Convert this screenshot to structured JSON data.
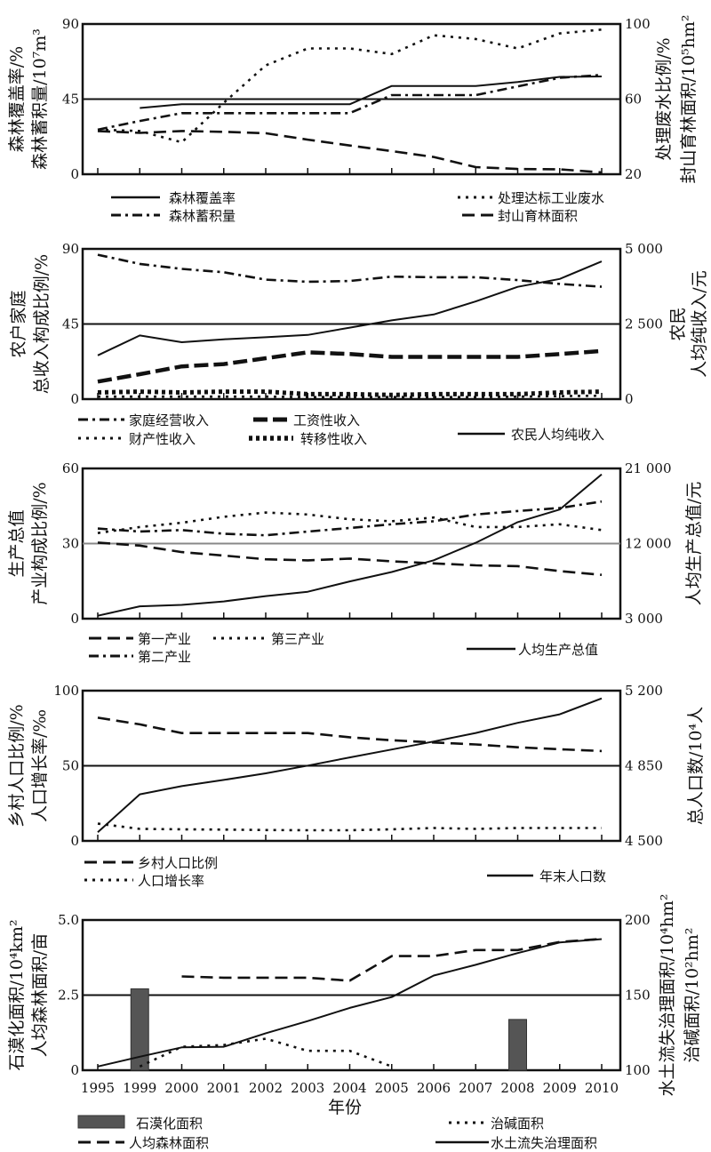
{
  "chart_data": [
    {
      "type": "line",
      "x": [
        "1995",
        "1999",
        "2000",
        "2001",
        "2002",
        "2003",
        "2004",
        "2005",
        "2006",
        "2007",
        "2008",
        "2009",
        "2010"
      ],
      "left_axis": {
        "labels": [
          "森林覆盖率/%",
          "森林蓄积量/10⁷m³"
        ],
        "range": [
          0,
          90
        ],
        "ticks": [
          "0",
          "45",
          "90"
        ]
      },
      "right_axis": {
        "labels": [
          "处理废水比例/%",
          "封山育林面积/10⁵hm²"
        ],
        "range": [
          20,
          100
        ],
        "ticks": [
          "20",
          "60",
          "100"
        ]
      },
      "reference_line": "midline",
      "series": [
        {
          "name": "森林覆盖率",
          "axis": "left",
          "style": "solid",
          "values": [
            null,
            39.7,
            41.9,
            41.9,
            41.9,
            41.9,
            41.9,
            52.9,
            52.9,
            52.9,
            55.2,
            58.3,
            58.6
          ]
        },
        {
          "name": "处理达标工业废水",
          "axis": "right",
          "style": "dotted",
          "values": [
            43.7,
            43,
            37,
            58,
            78,
            87,
            87,
            84,
            94,
            92,
            87,
            95,
            97
          ]
        },
        {
          "name": "森林蓄积量",
          "axis": "left",
          "style": "dash-dot",
          "values": [
            26.7,
            31.9,
            36.6,
            36.6,
            36.6,
            36.6,
            36.6,
            47.4,
            47.4,
            47.4,
            52.6,
            57.8,
            59.5
          ]
        },
        {
          "name": "封山育林面积",
          "axis": "right",
          "style": "long-dash",
          "values": [
            43,
            42,
            43,
            42.6,
            41.8,
            38.4,
            35.3,
            32.3,
            29.2,
            23.8,
            22.8,
            22.6,
            21
          ]
        }
      ]
    },
    {
      "type": "line",
      "x": [
        "1995",
        "1999",
        "2000",
        "2001",
        "2002",
        "2003",
        "2004",
        "2005",
        "2006",
        "2007",
        "2008",
        "2009",
        "2010"
      ],
      "left_axis": {
        "labels": [
          "农户家庭",
          "总收入构成比例/%"
        ],
        "range": [
          0,
          90
        ],
        "ticks": [
          "0",
          "45",
          "90"
        ]
      },
      "right_axis": {
        "labels": [
          "农民",
          "人均纯收入/元"
        ],
        "range": [
          0,
          5000
        ],
        "ticks": [
          "0",
          "2 500",
          "5 000"
        ]
      },
      "reference_line": "midline",
      "series": [
        {
          "name": "家庭经营收入",
          "axis": "left",
          "style": "dash-dot",
          "values": [
            86.5,
            81,
            78,
            76,
            71.6,
            70.3,
            70.8,
            73.4,
            73,
            73,
            71.3,
            69,
            67.3
          ]
        },
        {
          "name": "工资性收入",
          "axis": "left",
          "style": "thick-dash",
          "values": [
            10.5,
            14.9,
            19.6,
            21,
            24.5,
            28,
            27,
            25.3,
            25.3,
            25.3,
            25.3,
            27,
            28.8
          ]
        },
        {
          "name": "财产性收入",
          "axis": "left",
          "style": "dotted",
          "values": [
            1.5,
            1.5,
            1.5,
            1.5,
            1.5,
            1.2,
            1.2,
            1.2,
            1.2,
            1.2,
            1.5,
            1.8,
            2
          ]
        },
        {
          "name": "转移性收入",
          "axis": "left",
          "style": "square-dot",
          "values": [
            4,
            4.5,
            4,
            4.5,
            4.5,
            3,
            3,
            2.5,
            3,
            3,
            3,
            4,
            4.5
          ]
        },
        {
          "name": "农民人均纯收入",
          "axis": "right",
          "style": "solid",
          "values": [
            1456,
            2117,
            1893,
            1990,
            2058,
            2136,
            2379,
            2621,
            2816,
            3252,
            3738,
            4000,
            4583
          ]
        }
      ]
    },
    {
      "type": "line",
      "x": [
        "1995",
        "1999",
        "2000",
        "2001",
        "2002",
        "2003",
        "2004",
        "2005",
        "2006",
        "2007",
        "2008",
        "2009",
        "2010"
      ],
      "left_axis": {
        "labels": [
          "生产总值",
          "产业构成比例/%"
        ],
        "range": [
          0,
          60
        ],
        "ticks": [
          "0",
          "30",
          "60"
        ]
      },
      "right_axis": {
        "labels": [
          "人均生产总值/元"
        ],
        "range": [
          3000,
          21000
        ],
        "ticks": [
          "3 000",
          "12 000",
          "21 000"
        ]
      },
      "reference_line": "midline",
      "series": [
        {
          "name": "第一产业",
          "axis": "left",
          "style": "long-dash",
          "values": [
            30.4,
            29.2,
            26.6,
            25.2,
            23.7,
            23.3,
            24,
            22.9,
            22.1,
            21.3,
            21,
            19,
            17.5
          ]
        },
        {
          "name": "第三产业",
          "axis": "left",
          "style": "dotted",
          "values": [
            34.2,
            36.6,
            38.3,
            40.7,
            42.4,
            41.6,
            39.7,
            38.9,
            40.4,
            36.6,
            36.6,
            37.7,
            35.4
          ]
        },
        {
          "name": "第二产业",
          "axis": "left",
          "style": "dash-dot",
          "values": [
            36,
            34.8,
            35.4,
            33.9,
            33.3,
            34.8,
            36.2,
            37.7,
            38.9,
            41.6,
            43,
            44.2,
            46.8
          ]
        },
        {
          "name": "人均生产总值",
          "axis": "right",
          "style": "solid",
          "values": [
            3350,
            4480,
            4650,
            5070,
            5710,
            6230,
            7460,
            8590,
            10000,
            12100,
            14570,
            16080,
            20300
          ]
        }
      ]
    },
    {
      "type": "line",
      "x": [
        "1995",
        "1999",
        "2000",
        "2001",
        "2002",
        "2003",
        "2004",
        "2005",
        "2006",
        "2007",
        "2008",
        "2009",
        "2010"
      ],
      "left_axis": {
        "labels": [
          "乡村人口比例/%",
          "人口增长率/‰"
        ],
        "range": [
          0,
          100
        ],
        "ticks": [
          "0",
          "50",
          "100"
        ]
      },
      "right_axis": {
        "labels": [
          "总人口数/10⁴人"
        ],
        "range": [
          4500,
          5200
        ],
        "ticks": [
          "4 500",
          "4 850",
          "5 200"
        ]
      },
      "reference_line": "midline",
      "series": [
        {
          "name": "乡村人口比例",
          "axis": "left",
          "style": "long-dash",
          "values": [
            82,
            77.6,
            71.8,
            71.8,
            71.8,
            71.8,
            69,
            67,
            65.5,
            64.2,
            62.3,
            61,
            59.8
          ]
        },
        {
          "name": "人口增长率",
          "axis": "left",
          "style": "dotted",
          "values": [
            11.5,
            8,
            7.7,
            7.5,
            7.2,
            7.1,
            7.1,
            7.7,
            8.6,
            8,
            8.6,
            8.6,
            8.6
          ]
        },
        {
          "name": "年末人口数",
          "axis": "right",
          "style": "solid",
          "values": [
            4540,
            4717,
            4755,
            4784,
            4815,
            4851,
            4889,
            4926,
            4963,
            5003,
            5050,
            5090,
            5164
          ]
        }
      ]
    },
    {
      "type": "bar+line",
      "x": [
        "1995",
        "1999",
        "2000",
        "2001",
        "2002",
        "2003",
        "2004",
        "2005",
        "2006",
        "2007",
        "2008",
        "2009",
        "2010"
      ],
      "xlabel": "年份",
      "left_axis": {
        "labels": [
          "石漠化面积/10⁴km²",
          "人均森林面积/亩"
        ],
        "range": [
          0,
          5
        ],
        "ticks": [
          "0",
          "2.5",
          "5.0"
        ]
      },
      "right_axis": {
        "labels": [
          "水土流失治理面积/10⁴hm²",
          "治碱面积/10²hm²"
        ],
        "range": [
          100,
          200
        ],
        "ticks": [
          "100",
          "150",
          "200"
        ]
      },
      "reference_line": "midline",
      "series": [
        {
          "name": "石漠化面积",
          "axis": "left",
          "style": "bar",
          "color": "#555555",
          "values": [
            null,
            2.71,
            null,
            null,
            null,
            null,
            null,
            null,
            null,
            null,
            1.69,
            null,
            null
          ]
        },
        {
          "name": "治碱面积",
          "axis": "right",
          "style": "dotted",
          "values": [
            null,
            102.5,
            115.6,
            116.8,
            121,
            112.9,
            112.9,
            102.5,
            null,
            null,
            null,
            null,
            null
          ]
        },
        {
          "name": "人均森林面积",
          "axis": "left",
          "style": "long-dash",
          "values": [
            null,
            null,
            3.12,
            3.08,
            3.08,
            3.08,
            2.98,
            3.8,
            3.8,
            4.0,
            4.0,
            4.27,
            4.37
          ]
        },
        {
          "name": "水土流失治理面积",
          "axis": "right",
          "style": "solid",
          "values": [
            102.5,
            109,
            115.2,
            115.6,
            124.6,
            132.7,
            141.5,
            148.7,
            163,
            170.2,
            178,
            185,
            187.3
          ]
        }
      ]
    }
  ]
}
